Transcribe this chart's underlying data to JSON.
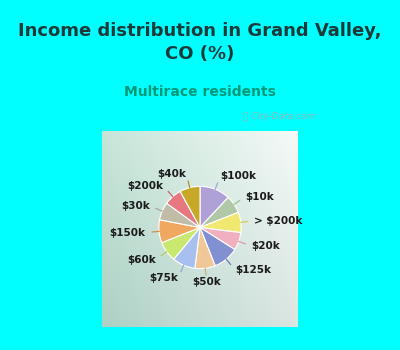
{
  "title": "Income distribution in Grand Valley,\nCO (%)",
  "subtitle": "Multirace residents",
  "title_color": "#1a3a3a",
  "subtitle_color": "#009977",
  "bg_cyan": "#00ffff",
  "watermark": "ⓘ City-Data.com",
  "labels": [
    "$100k",
    "$10k",
    "> $200k",
    "$20k",
    "$125k",
    "$50k",
    "$75k",
    "$60k",
    "$150k",
    "$30k",
    "$200k",
    "$40k"
  ],
  "values": [
    12,
    7,
    8,
    7,
    10,
    8,
    9,
    8,
    9,
    7,
    7,
    8
  ],
  "colors": [
    "#b0a0d8",
    "#b0c8a8",
    "#f0e870",
    "#f0b0c0",
    "#8090d0",
    "#f0c898",
    "#a8c0f0",
    "#c8e870",
    "#f0a860",
    "#c0bca8",
    "#e87880",
    "#c8a828"
  ],
  "line_colors": [
    "#a0a0d0",
    "#a0b890",
    "#d0c840",
    "#e090a0",
    "#6070b8",
    "#d0a878",
    "#88a8d8",
    "#a8d050",
    "#d08840",
    "#a0a090",
    "#d05060",
    "#a88810"
  ],
  "title_fontsize": 13,
  "subtitle_fontsize": 10,
  "label_fontsize": 7.5
}
